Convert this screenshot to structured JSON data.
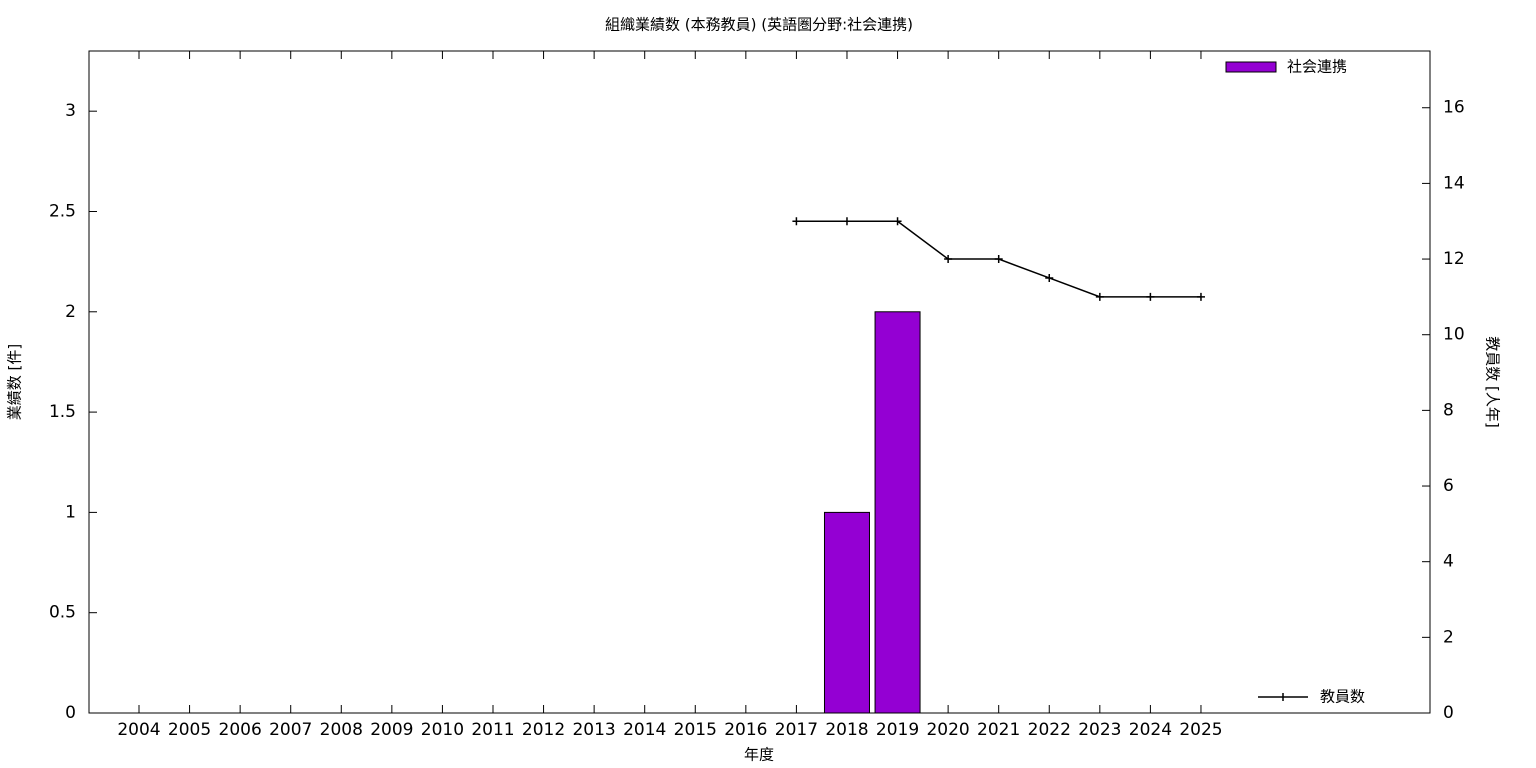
{
  "chart_data": {
    "type": "bar",
    "title": "組織業績数 (本務教員) (英語圏分野:社会連携)",
    "x_label": "年度",
    "y_label": "業績数 [件]",
    "y2_label": "教員数 [人年]",
    "categories": [
      "2004",
      "2005",
      "2006",
      "2007",
      "2008",
      "2009",
      "2010",
      "2011",
      "2012",
      "2013",
      "2014",
      "2015",
      "2016",
      "2017",
      "2018",
      "2019",
      "2020",
      "2021",
      "2022",
      "2023",
      "2024",
      "2025"
    ],
    "series": [
      {
        "name": "社会連携",
        "type": "bar",
        "color": "#9400d3",
        "legend": "top-right",
        "values": [
          0,
          0,
          0,
          0,
          0,
          0,
          0,
          0,
          0,
          0,
          0,
          0,
          0,
          0,
          1,
          2,
          0,
          0,
          0,
          0,
          0,
          0
        ]
      },
      {
        "name": "教員数",
        "type": "line",
        "color": "#000000",
        "axis": "y2",
        "legend": "bottom-right",
        "values": [
          null,
          null,
          null,
          null,
          null,
          null,
          null,
          null,
          null,
          null,
          null,
          null,
          null,
          13,
          13,
          13,
          12,
          12,
          11.5,
          11,
          11,
          11
        ]
      }
    ],
    "ylim": [
      0,
      3.3
    ],
    "yticks": [
      0,
      0.5,
      1,
      1.5,
      2,
      2.5,
      3
    ],
    "y2lim": [
      0,
      17.5
    ],
    "y2ticks": [
      0,
      2,
      4,
      6,
      8,
      10,
      12,
      14,
      16
    ],
    "grid": false
  }
}
